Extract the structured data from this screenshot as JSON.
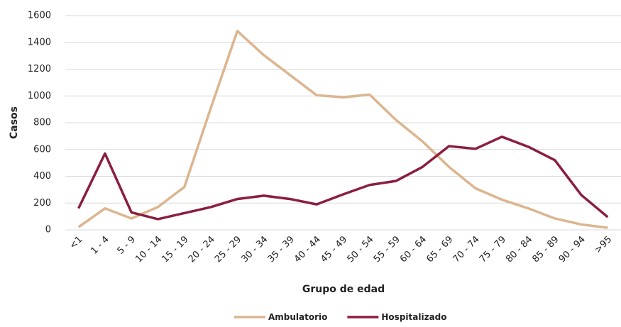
{
  "chart_data": {
    "type": "line",
    "x_label": "Grupo de edad",
    "y_label": "Casos",
    "categories": [
      "<1",
      "1 - 4",
      "5 - 9",
      "10 - 14",
      "15 - 19",
      "20 - 24",
      "25 - 29",
      "30 - 34",
      "35 - 39",
      "40 - 44",
      "45 - 49",
      "50 - 54",
      "55 - 59",
      "60 - 64",
      "65 - 69",
      "70 - 74",
      "75 - 79",
      "80 - 84",
      "85 - 89",
      "90 - 94",
      ">95"
    ],
    "series": [
      {
        "name": "Ambulatorio",
        "color": "#dcb58f",
        "values": [
          20,
          160,
          85,
          170,
          320,
          910,
          1485,
          1305,
          1155,
          1005,
          990,
          1010,
          820,
          660,
          470,
          310,
          225,
          160,
          85,
          40,
          15
        ]
      },
      {
        "name": "Hospitalizado",
        "color": "#8b1e3f",
        "values": [
          160,
          570,
          130,
          80,
          125,
          170,
          230,
          255,
          230,
          190,
          265,
          335,
          365,
          470,
          625,
          605,
          695,
          620,
          520,
          260,
          95
        ]
      }
    ],
    "ylim": [
      0,
      1600
    ],
    "yticks": [
      0,
      200,
      400,
      600,
      800,
      1000,
      1200,
      1400,
      1600
    ],
    "grid": true,
    "legend": "bottom"
  }
}
